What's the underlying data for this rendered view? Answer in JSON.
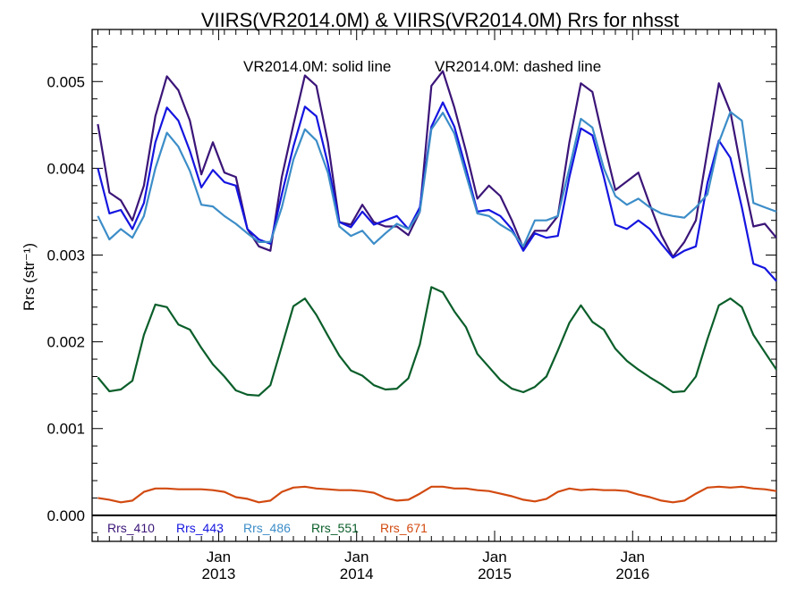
{
  "chart_data": {
    "type": "line",
    "title": "VIIRS(VR2014.0M) & VIIRS(VR2014.0M)  Rrs for nhsst",
    "annotation": {
      "solid": "VR2014.0M: solid line",
      "dashed": "VR2014.0M: dashed line"
    },
    "ylabel": "Rrs (str⁻¹)",
    "ylim": [
      -0.0003,
      0.0056
    ],
    "xlim": [
      -0.5,
      59.0
    ],
    "grid": false,
    "legend_placement": "bottom-left",
    "y_ticks": [
      {
        "value": 0.0,
        "label": "0.000"
      },
      {
        "value": 0.001,
        "label": "0.001"
      },
      {
        "value": 0.002,
        "label": "0.002"
      },
      {
        "value": 0.003,
        "label": "0.003"
      },
      {
        "value": 0.004,
        "label": "0.004"
      },
      {
        "value": 0.005,
        "label": "0.005"
      }
    ],
    "x_ticks": [
      {
        "value": 10.5,
        "month": "Jan",
        "year": "2013"
      },
      {
        "value": 22.5,
        "month": "Jan",
        "year": "2014"
      },
      {
        "value": 34.5,
        "month": "Jan",
        "year": "2015"
      },
      {
        "value": 46.5,
        "month": "Jan",
        "year": "2016"
      }
    ],
    "x_unit": "month index (0 = Mar 2012)",
    "x": [
      0,
      1,
      2,
      3,
      4,
      5,
      6,
      7,
      8,
      9,
      10,
      11,
      12,
      13,
      14,
      15,
      16,
      17,
      18,
      19,
      20,
      21,
      22,
      23,
      24,
      25,
      26,
      27,
      28,
      29,
      30,
      31,
      32,
      33,
      34,
      35,
      36,
      37,
      38,
      39,
      40,
      41,
      42,
      43,
      44,
      45,
      46,
      47,
      48,
      49,
      50,
      51,
      52,
      53,
      54,
      55,
      56,
      57,
      58,
      59
    ],
    "series": [
      {
        "name": "Rrs_410",
        "color": "#3b1578",
        "values": [
          0.00451,
          0.00372,
          0.00363,
          0.0034,
          0.0038,
          0.0046,
          0.00506,
          0.0049,
          0.00455,
          0.00393,
          0.0043,
          0.00395,
          0.0039,
          0.0033,
          0.0031,
          0.00305,
          0.0039,
          0.0045,
          0.00507,
          0.00495,
          0.0043,
          0.00338,
          0.00335,
          0.00358,
          0.00338,
          0.00333,
          0.00333,
          0.00323,
          0.0035,
          0.00495,
          0.00512,
          0.0047,
          0.0042,
          0.00365,
          0.0038,
          0.00368,
          0.0034,
          0.00308,
          0.00328,
          0.00328,
          0.00345,
          0.0043,
          0.00498,
          0.00488,
          0.0043,
          0.00375,
          0.00385,
          0.00395,
          0.00358,
          0.00323,
          0.00298,
          0.00315,
          0.0034,
          0.0042,
          0.00498,
          0.00465,
          0.00395,
          0.00333,
          0.00336,
          0.0032
        ]
      },
      {
        "name": "Rrs_443",
        "color": "#1515e0",
        "values": [
          0.004,
          0.00348,
          0.00352,
          0.0033,
          0.0036,
          0.0043,
          0.0047,
          0.00455,
          0.0042,
          0.00378,
          0.00398,
          0.00384,
          0.0038,
          0.0033,
          0.00318,
          0.00313,
          0.0037,
          0.00425,
          0.00471,
          0.0046,
          0.00405,
          0.00338,
          0.00332,
          0.0035,
          0.00335,
          0.0034,
          0.00345,
          0.0033,
          0.00355,
          0.00448,
          0.00476,
          0.00448,
          0.004,
          0.0035,
          0.00352,
          0.00345,
          0.0033,
          0.00305,
          0.00325,
          0.0032,
          0.00322,
          0.0039,
          0.00446,
          0.00438,
          0.0039,
          0.00335,
          0.0033,
          0.0034,
          0.0033,
          0.00313,
          0.00297,
          0.00305,
          0.0031,
          0.00383,
          0.00432,
          0.00412,
          0.00355,
          0.0029,
          0.00285,
          0.0027
        ]
      },
      {
        "name": "Rrs_486",
        "color": "#3c8dc8",
        "values": [
          0.00345,
          0.00318,
          0.0033,
          0.0032,
          0.00345,
          0.004,
          0.00441,
          0.00425,
          0.00397,
          0.00358,
          0.00356,
          0.00345,
          0.00336,
          0.00325,
          0.00315,
          0.00315,
          0.00355,
          0.0041,
          0.00445,
          0.00432,
          0.00395,
          0.00333,
          0.00322,
          0.00328,
          0.00313,
          0.00325,
          0.00336,
          0.0033,
          0.0035,
          0.00445,
          0.00464,
          0.0044,
          0.00393,
          0.00348,
          0.00345,
          0.00335,
          0.00327,
          0.0031,
          0.0034,
          0.0034,
          0.00345,
          0.004,
          0.00457,
          0.00447,
          0.004,
          0.00368,
          0.00358,
          0.00365,
          0.00355,
          0.00348,
          0.00345,
          0.00343,
          0.00355,
          0.0037,
          0.0043,
          0.00465,
          0.00455,
          0.0036,
          0.00355,
          0.0035
        ]
      },
      {
        "name": "Rrs_551",
        "color": "#0a5e2a",
        "values": [
          0.00159,
          0.00143,
          0.00145,
          0.00155,
          0.00208,
          0.00243,
          0.0024,
          0.0022,
          0.00214,
          0.00193,
          0.00174,
          0.0016,
          0.00144,
          0.00139,
          0.00138,
          0.0015,
          0.00195,
          0.00241,
          0.0025,
          0.00231,
          0.00207,
          0.00184,
          0.00167,
          0.00161,
          0.0015,
          0.00145,
          0.00146,
          0.00158,
          0.00197,
          0.00263,
          0.00257,
          0.00235,
          0.00217,
          0.00186,
          0.00171,
          0.00156,
          0.00146,
          0.00142,
          0.00148,
          0.0016,
          0.0019,
          0.00222,
          0.00242,
          0.00223,
          0.00214,
          0.00192,
          0.00178,
          0.00168,
          0.00159,
          0.00151,
          0.00142,
          0.00143,
          0.0016,
          0.00203,
          0.00242,
          0.0025,
          0.0024,
          0.00208,
          0.00188,
          0.00168
        ]
      },
      {
        "name": "Rrs_671",
        "color": "#d24a10",
        "values": [
          0.0002,
          0.00018,
          0.00015,
          0.00017,
          0.00027,
          0.00031,
          0.00031,
          0.0003,
          0.0003,
          0.0003,
          0.00029,
          0.00027,
          0.00021,
          0.00019,
          0.00015,
          0.00017,
          0.00027,
          0.00032,
          0.00033,
          0.00031,
          0.0003,
          0.00029,
          0.00029,
          0.00028,
          0.00026,
          0.0002,
          0.00017,
          0.00018,
          0.00025,
          0.00033,
          0.00033,
          0.00031,
          0.00031,
          0.00029,
          0.00028,
          0.00025,
          0.00022,
          0.00018,
          0.00016,
          0.00019,
          0.00027,
          0.00031,
          0.00029,
          0.0003,
          0.00029,
          0.00029,
          0.00028,
          0.00024,
          0.00021,
          0.00017,
          0.00015,
          0.00017,
          0.00025,
          0.00032,
          0.00033,
          0.00032,
          0.00033,
          0.00031,
          0.0003,
          0.00028
        ]
      }
    ]
  }
}
